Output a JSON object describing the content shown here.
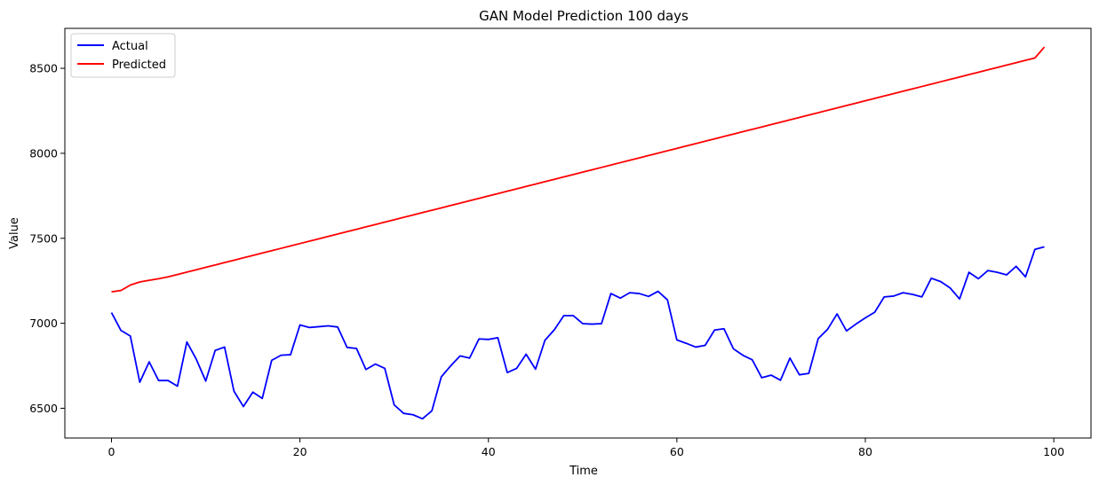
{
  "chart_data": {
    "type": "line",
    "title": "GAN Model Prediction 100 days",
    "xlabel": "Time",
    "ylabel": "Value",
    "xlim": [
      -4.95,
      103.95
    ],
    "ylim": [
      6325,
      8735
    ],
    "xticks": [
      0,
      20,
      40,
      60,
      80,
      100
    ],
    "yticks": [
      6500,
      7000,
      7500,
      8000,
      8500
    ],
    "grid": false,
    "legend_position": "top-left",
    "x": [
      0,
      1,
      2,
      3,
      4,
      5,
      6,
      7,
      8,
      9,
      10,
      11,
      12,
      13,
      14,
      15,
      16,
      17,
      18,
      19,
      20,
      21,
      22,
      23,
      24,
      25,
      26,
      27,
      28,
      29,
      30,
      31,
      32,
      33,
      34,
      35,
      36,
      37,
      38,
      39,
      40,
      41,
      42,
      43,
      44,
      45,
      46,
      47,
      48,
      49,
      50,
      51,
      52,
      53,
      54,
      55,
      56,
      57,
      58,
      59,
      60,
      61,
      62,
      63,
      64,
      65,
      66,
      67,
      68,
      69,
      70,
      71,
      72,
      73,
      74,
      75,
      76,
      77,
      78,
      79,
      80,
      81,
      82,
      83,
      84,
      85,
      86,
      87,
      88,
      89,
      90,
      91,
      92,
      93,
      94,
      95,
      96,
      97,
      98,
      99
    ],
    "series": [
      {
        "name": "Actual",
        "color": "#0000ff",
        "values": [
          7063,
          6958,
          6925,
          6653,
          6773,
          6663,
          6663,
          6630,
          6890,
          6788,
          6660,
          6840,
          6860,
          6600,
          6510,
          6595,
          6558,
          6782,
          6812,
          6815,
          6990,
          6975,
          6980,
          6985,
          6978,
          6858,
          6852,
          6728,
          6760,
          6735,
          6520,
          6470,
          6462,
          6438,
          6485,
          6685,
          6750,
          6808,
          6795,
          6908,
          6905,
          6915,
          6710,
          6735,
          6818,
          6730,
          6900,
          6962,
          7045,
          7045,
          6998,
          6995,
          6998,
          7175,
          7148,
          7180,
          7175,
          7158,
          7188,
          7138,
          6902,
          6882,
          6860,
          6870,
          6960,
          6968,
          6850,
          6812,
          6785,
          6680,
          6695,
          6665,
          6795,
          6697,
          6705,
          6910,
          6965,
          7055,
          6955,
          6995,
          7032,
          7065,
          7155,
          7160,
          7180,
          7170,
          7155,
          7265,
          7245,
          7208,
          7143,
          7300,
          7262,
          7310,
          7300,
          7285,
          7335,
          7273,
          7435,
          7450
        ]
      },
      {
        "name": "Predicted",
        "color": "#ff0000",
        "values": [
          7185,
          7193,
          7225,
          7243,
          7253,
          7262,
          7273,
          7287,
          7301,
          7315,
          7329,
          7343,
          7357,
          7371,
          7385,
          7399,
          7413,
          7427,
          7441,
          7455,
          7469,
          7483,
          7497,
          7511,
          7525,
          7539,
          7553,
          7567,
          7581,
          7595,
          7609,
          7623,
          7637,
          7651,
          7665,
          7679,
          7693,
          7707,
          7721,
          7735,
          7749,
          7763,
          7777,
          7791,
          7805,
          7819,
          7833,
          7847,
          7861,
          7875,
          7889,
          7903,
          7917,
          7931,
          7945,
          7959,
          7973,
          7987,
          8001,
          8015,
          8029,
          8043,
          8057,
          8071,
          8085,
          8099,
          8113,
          8127,
          8141,
          8155,
          8169,
          8183,
          8197,
          8211,
          8225,
          8239,
          8253,
          8267,
          8281,
          8295,
          8309,
          8323,
          8337,
          8351,
          8365,
          8379,
          8393,
          8407,
          8421,
          8435,
          8449,
          8463,
          8477,
          8491,
          8505,
          8519,
          8533,
          8547,
          8561,
          8625
        ]
      }
    ]
  }
}
